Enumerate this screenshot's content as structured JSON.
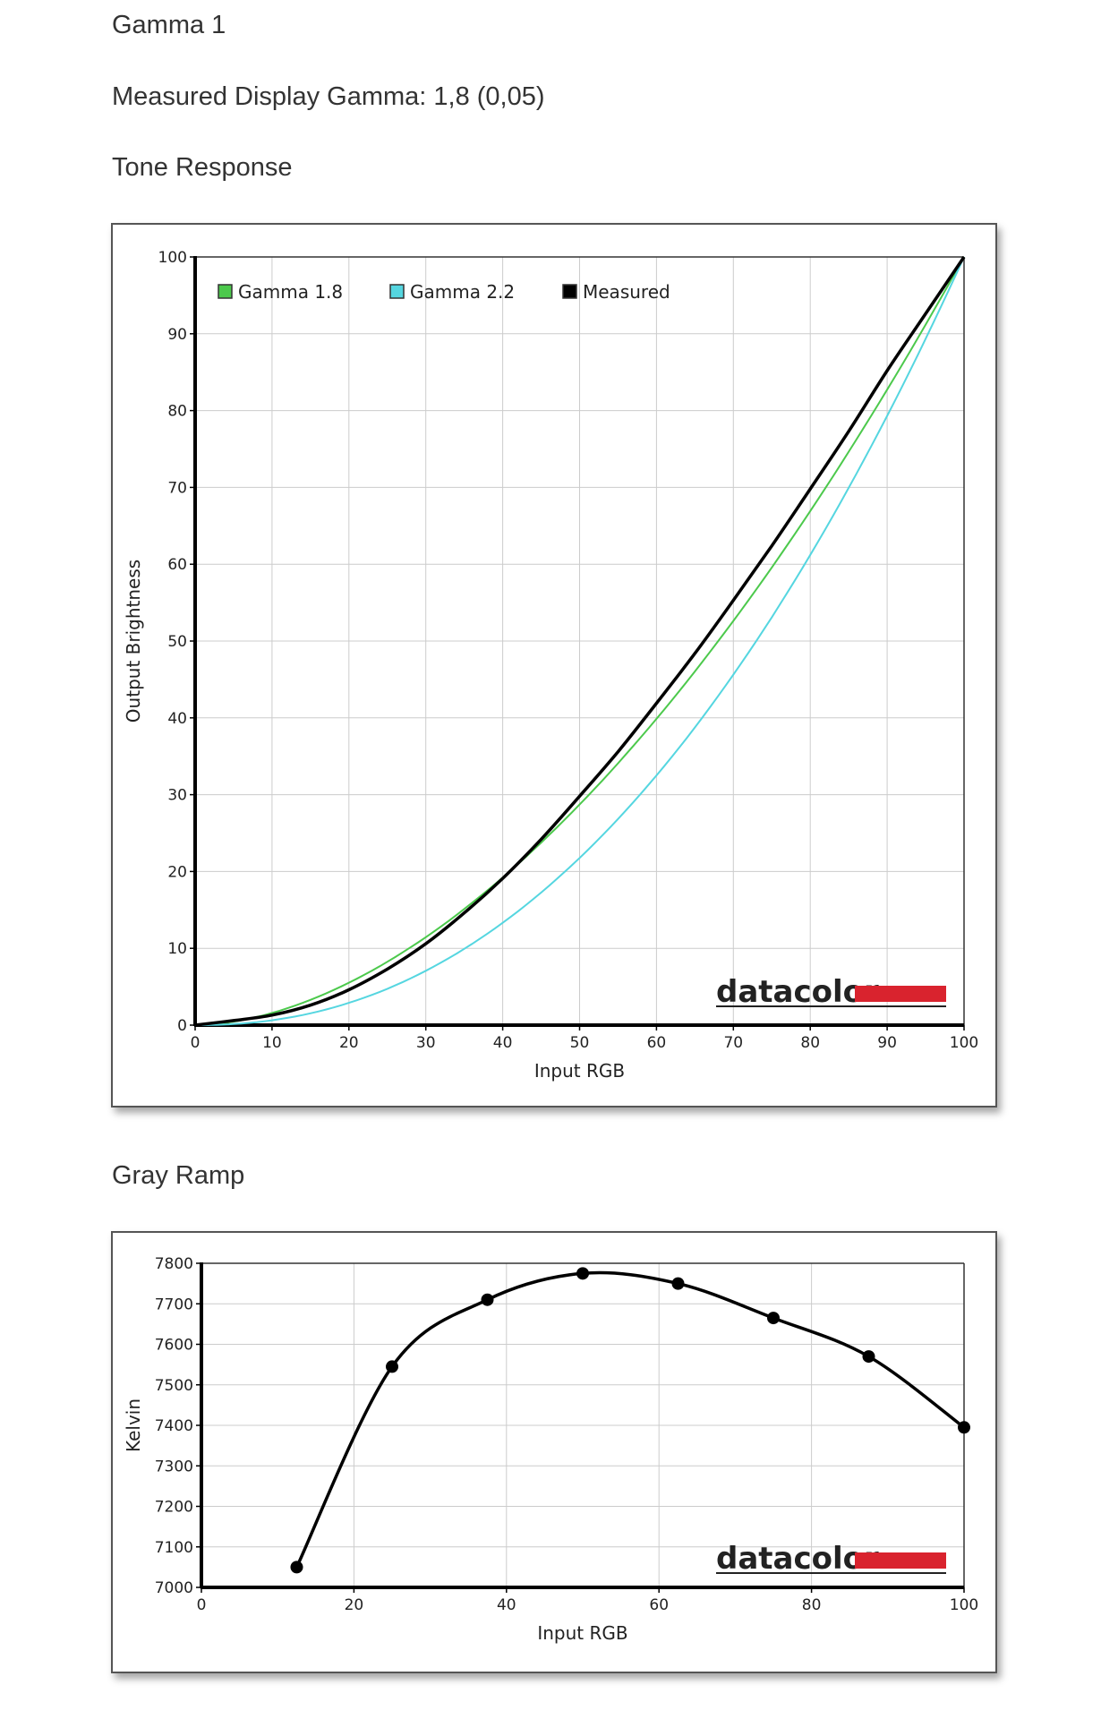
{
  "page": {
    "title": "Gamma 1",
    "measured_label": "Measured Display Gamma: 1,8 (0,05)",
    "tone_heading": "Tone Response",
    "gray_heading": "Gray Ramp"
  },
  "logo_text": "datacolor",
  "colors": {
    "gamma18": "#4cc94c",
    "gamma22": "#55d6e0",
    "measured": "#000000",
    "grid": "#cccccc",
    "brand_red": "#d9232e"
  },
  "chart_data": [
    {
      "type": "line",
      "title": "",
      "xlabel": "Input RGB",
      "ylabel": "Output Brightness",
      "xlim": [
        0,
        100
      ],
      "ylim": [
        0,
        100
      ],
      "xticks": [
        0,
        10,
        20,
        30,
        40,
        50,
        60,
        70,
        80,
        90,
        100
      ],
      "yticks": [
        0,
        10,
        20,
        30,
        40,
        50,
        60,
        70,
        80,
        90,
        100
      ],
      "grid": true,
      "legend": "top-left",
      "series": [
        {
          "name": "Gamma 1.8",
          "color": "#4cc94c",
          "gamma": 1.8
        },
        {
          "name": "Gamma 2.2",
          "color": "#55d6e0",
          "gamma": 2.2
        },
        {
          "name": "Measured",
          "color": "#000000",
          "x": [
            0,
            5,
            10,
            15,
            20,
            25,
            30,
            35,
            40,
            45,
            50,
            55,
            60,
            65,
            70,
            75,
            80,
            85,
            90,
            95,
            100
          ],
          "y": [
            0,
            0.6,
            1.3,
            2.6,
            4.6,
            7.3,
            10.6,
            14.6,
            19.1,
            24.2,
            29.8,
            35.6,
            41.9,
            48.4,
            55.3,
            62.4,
            69.8,
            77.3,
            85.2,
            92.6,
            100
          ]
        }
      ]
    },
    {
      "type": "line",
      "title": "",
      "xlabel": "Input RGB",
      "ylabel": "Kelvin",
      "xlim": [
        0,
        100
      ],
      "ylim": [
        7000,
        7800
      ],
      "xticks": [
        0,
        20,
        40,
        60,
        80,
        100
      ],
      "yticks": [
        7000,
        7100,
        7200,
        7300,
        7400,
        7500,
        7600,
        7700,
        7800
      ],
      "grid": true,
      "series": [
        {
          "name": "",
          "color": "#000000",
          "x": [
            12.5,
            25,
            37.5,
            50,
            62.5,
            75,
            87.5,
            100
          ],
          "y": [
            7050,
            7545,
            7710,
            7775,
            7750,
            7665,
            7570,
            7395
          ]
        }
      ]
    }
  ]
}
